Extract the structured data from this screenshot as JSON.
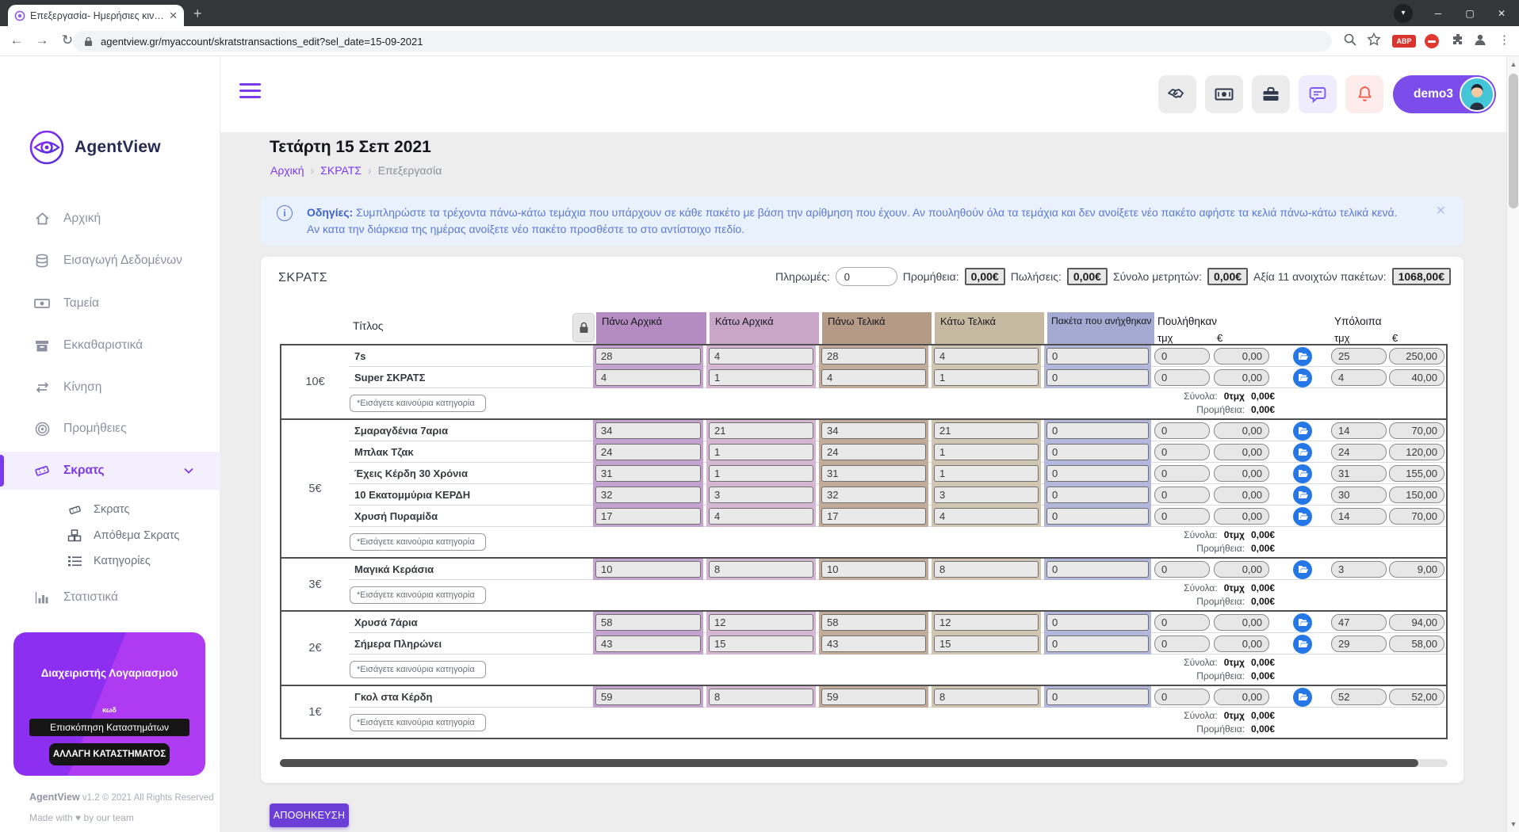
{
  "colors": {
    "accent": "#7c3aed",
    "save_button": "#6b3fd6",
    "open_button_blue": "#2577e6",
    "bell_red": "#f0614f",
    "chat_purple": "#7c5cf0",
    "info_blue": "#5b79d7"
  },
  "browser": {
    "tab_title": "Επεξεργασία- Ημερήσιες κινήσει",
    "url": "agentview.gr/myaccount/skratstransactions_edit?sel_date=15-09-2021",
    "abp_label": "ABP"
  },
  "sidebar": {
    "brand": "AgentView",
    "items": [
      {
        "label": "Αρχική",
        "icon": "home"
      },
      {
        "label": "Εισαγωγή Δεδομένων",
        "icon": "database"
      },
      {
        "label": "Ταμεία",
        "icon": "money"
      },
      {
        "label": "Εκκαθαριστικά",
        "icon": "archive"
      },
      {
        "label": "Κίνηση",
        "icon": "exchange"
      },
      {
        "label": "Προμήθειες",
        "icon": "target"
      },
      {
        "label": "Σκρατς",
        "icon": "ticket"
      }
    ],
    "subitems": [
      {
        "label": "Σκρατς",
        "icon": "ticket"
      },
      {
        "label": "Απόθεμα Σκρατς",
        "icon": "cubes"
      },
      {
        "label": "Κατηγορίες",
        "icon": "list"
      }
    ],
    "stats_label": "Στατιστικά",
    "account": {
      "title": "Διαχειριστής Λογαριασμού",
      "code_label": "κωδ",
      "review_button": "Επισκόπηση Καταστημάτων",
      "change_button": "ΑΛΛΑΓΗ ΚΑΤΑΣΤΗΜΑΤΟΣ"
    },
    "footer_brand": "AgentView",
    "footer_rest": " v1.2 © 2021 All Rights Reserved",
    "footer_made": "Made with ♥ by our team"
  },
  "header": {
    "username": "demo3"
  },
  "page": {
    "title": "Τετάρτη 15 Σεπ 2021",
    "breadcrumb": [
      {
        "label": "Αρχική"
      },
      {
        "label": "ΣΚΡΑΤΣ"
      },
      {
        "label": "Επεξεργασία"
      }
    ],
    "info_title": "Οδηγίες:",
    "info_text": " Συμπληρώστε τα τρέχοντα πάνω-κάτω τεμάχια που υπάρχουν σε κάθε πακέτο με βάση την αρίθμηση που έχουν. Αν πουληθούν όλα τα τεμάχια και δεν ανοίξετε νέο πακέτο αφήστε τα κελιά πάνω-κάτω τελικά κενά. Αν κατα την διάρκεια της ημέρας ανοίξετε νέο πακέτο προσθέστε το στο αντίστοιχο πεδίο."
  },
  "card": {
    "title": "ΣΚΡΑΤΣ",
    "payments_label": "Πληρωμές:",
    "payments_value": "0",
    "summary": [
      {
        "label": "Προμήθεια:",
        "value": "0,00€"
      },
      {
        "label": "Πωλήσεις:",
        "value": "0,00€"
      },
      {
        "label": "Σύνολο μετρητών:",
        "value": "0,00€"
      },
      {
        "label": "Αξία 11 ανοιχτών πακέτων:",
        "value": "1068,00€"
      }
    ]
  },
  "table": {
    "title_header": "Τίτλος",
    "columns": [
      "Πάνω Αρχικά",
      "Κάτω Αρχικά",
      "Πάνω Τελικά",
      "Κάτω Τελικά",
      "Πακέτα που ανήχθηκαν"
    ],
    "column_keys": [
      "pano-arxika",
      "kato-arxika",
      "pano-telika",
      "kato-telika",
      "paketa-anixthikan"
    ],
    "column_colors": [
      {
        "header": "#b58cc2",
        "cell": "#c5a3d0"
      },
      {
        "header": "#c9a6c8",
        "cell": "#d5b7d4"
      },
      {
        "header": "#b49a87",
        "cell": "#c2ab98"
      },
      {
        "header": "#c6b9a1",
        "cell": "#d1c6b1"
      },
      {
        "header": "#a5aad3",
        "cell": "#b3b7dc"
      }
    ],
    "sold_header": "Πουλήθηκαν",
    "remaining_header": "Υπόλοιπα",
    "qty_sub": "τμχ",
    "eur_sub": "€",
    "new_category_placeholder": "*Εισάγετε καινούρια κατηγορία",
    "totals_label": "Σύνολα:",
    "commission_label": "Προμήθεια:",
    "groups": [
      {
        "price": "10€",
        "totals_qty": "0τμχ",
        "totals_eur": "0,00€",
        "commission": "0,00€",
        "rows": [
          {
            "title": "7s",
            "vals": [
              "28",
              "4",
              "28",
              "4",
              "0"
            ],
            "sold_qty": "0",
            "sold_eur": "0,00",
            "rem_qty": "25",
            "rem_eur": "250,00"
          },
          {
            "title": "Super ΣΚΡΑΤΣ",
            "vals": [
              "4",
              "1",
              "4",
              "1",
              "0"
            ],
            "sold_qty": "0",
            "sold_eur": "0,00",
            "rem_qty": "4",
            "rem_eur": "40,00"
          }
        ]
      },
      {
        "price": "5€",
        "totals_qty": "0τμχ",
        "totals_eur": "0,00€",
        "commission": "0,00€",
        "rows": [
          {
            "title": "Σμαραγδένια 7αρια",
            "vals": [
              "34",
              "21",
              "34",
              "21",
              "0"
            ],
            "sold_qty": "0",
            "sold_eur": "0,00",
            "rem_qty": "14",
            "rem_eur": "70,00"
          },
          {
            "title": "Μπλακ Τζακ",
            "vals": [
              "24",
              "1",
              "24",
              "1",
              "0"
            ],
            "sold_qty": "0",
            "sold_eur": "0,00",
            "rem_qty": "24",
            "rem_eur": "120,00"
          },
          {
            "title": "Έχεις Κέρδη 30 Χρόνια",
            "vals": [
              "31",
              "1",
              "31",
              "1",
              "0"
            ],
            "sold_qty": "0",
            "sold_eur": "0,00",
            "rem_qty": "31",
            "rem_eur": "155,00"
          },
          {
            "title": "10 Εκατομμύρια ΚΕΡΔΗ",
            "vals": [
              "32",
              "3",
              "32",
              "3",
              "0"
            ],
            "sold_qty": "0",
            "sold_eur": "0,00",
            "rem_qty": "30",
            "rem_eur": "150,00"
          },
          {
            "title": "Χρυσή Πυραμίδα",
            "vals": [
              "17",
              "4",
              "17",
              "4",
              "0"
            ],
            "sold_qty": "0",
            "sold_eur": "0,00",
            "rem_qty": "14",
            "rem_eur": "70,00"
          }
        ]
      },
      {
        "price": "3€",
        "totals_qty": "0τμχ",
        "totals_eur": "0,00€",
        "commission": "0,00€",
        "rows": [
          {
            "title": "Μαγικά Κεράσια",
            "vals": [
              "10",
              "8",
              "10",
              "8",
              "0"
            ],
            "sold_qty": "0",
            "sold_eur": "0,00",
            "rem_qty": "3",
            "rem_eur": "9,00"
          }
        ]
      },
      {
        "price": "2€",
        "totals_qty": "0τμχ",
        "totals_eur": "0,00€",
        "commission": "0,00€",
        "rows": [
          {
            "title": "Χρυσά 7άρια",
            "vals": [
              "58",
              "12",
              "58",
              "12",
              "0"
            ],
            "sold_qty": "0",
            "sold_eur": "0,00",
            "rem_qty": "47",
            "rem_eur": "94,00"
          },
          {
            "title": "Σήμερα Πληρώνει",
            "vals": [
              "43",
              "15",
              "43",
              "15",
              "0"
            ],
            "sold_qty": "0",
            "sold_eur": "0,00",
            "rem_qty": "29",
            "rem_eur": "58,00"
          }
        ]
      },
      {
        "price": "1€",
        "totals_qty": "0τμχ",
        "totals_eur": "0,00€",
        "commission": "0,00€",
        "rows": [
          {
            "title": "Γκολ στα Κέρδη",
            "vals": [
              "59",
              "8",
              "59",
              "8",
              "0"
            ],
            "sold_qty": "0",
            "sold_eur": "0,00",
            "rem_qty": "52",
            "rem_eur": "52,00"
          }
        ]
      }
    ]
  },
  "save_label": "ΑΠΟΘΗΚΕΥΣΗ"
}
